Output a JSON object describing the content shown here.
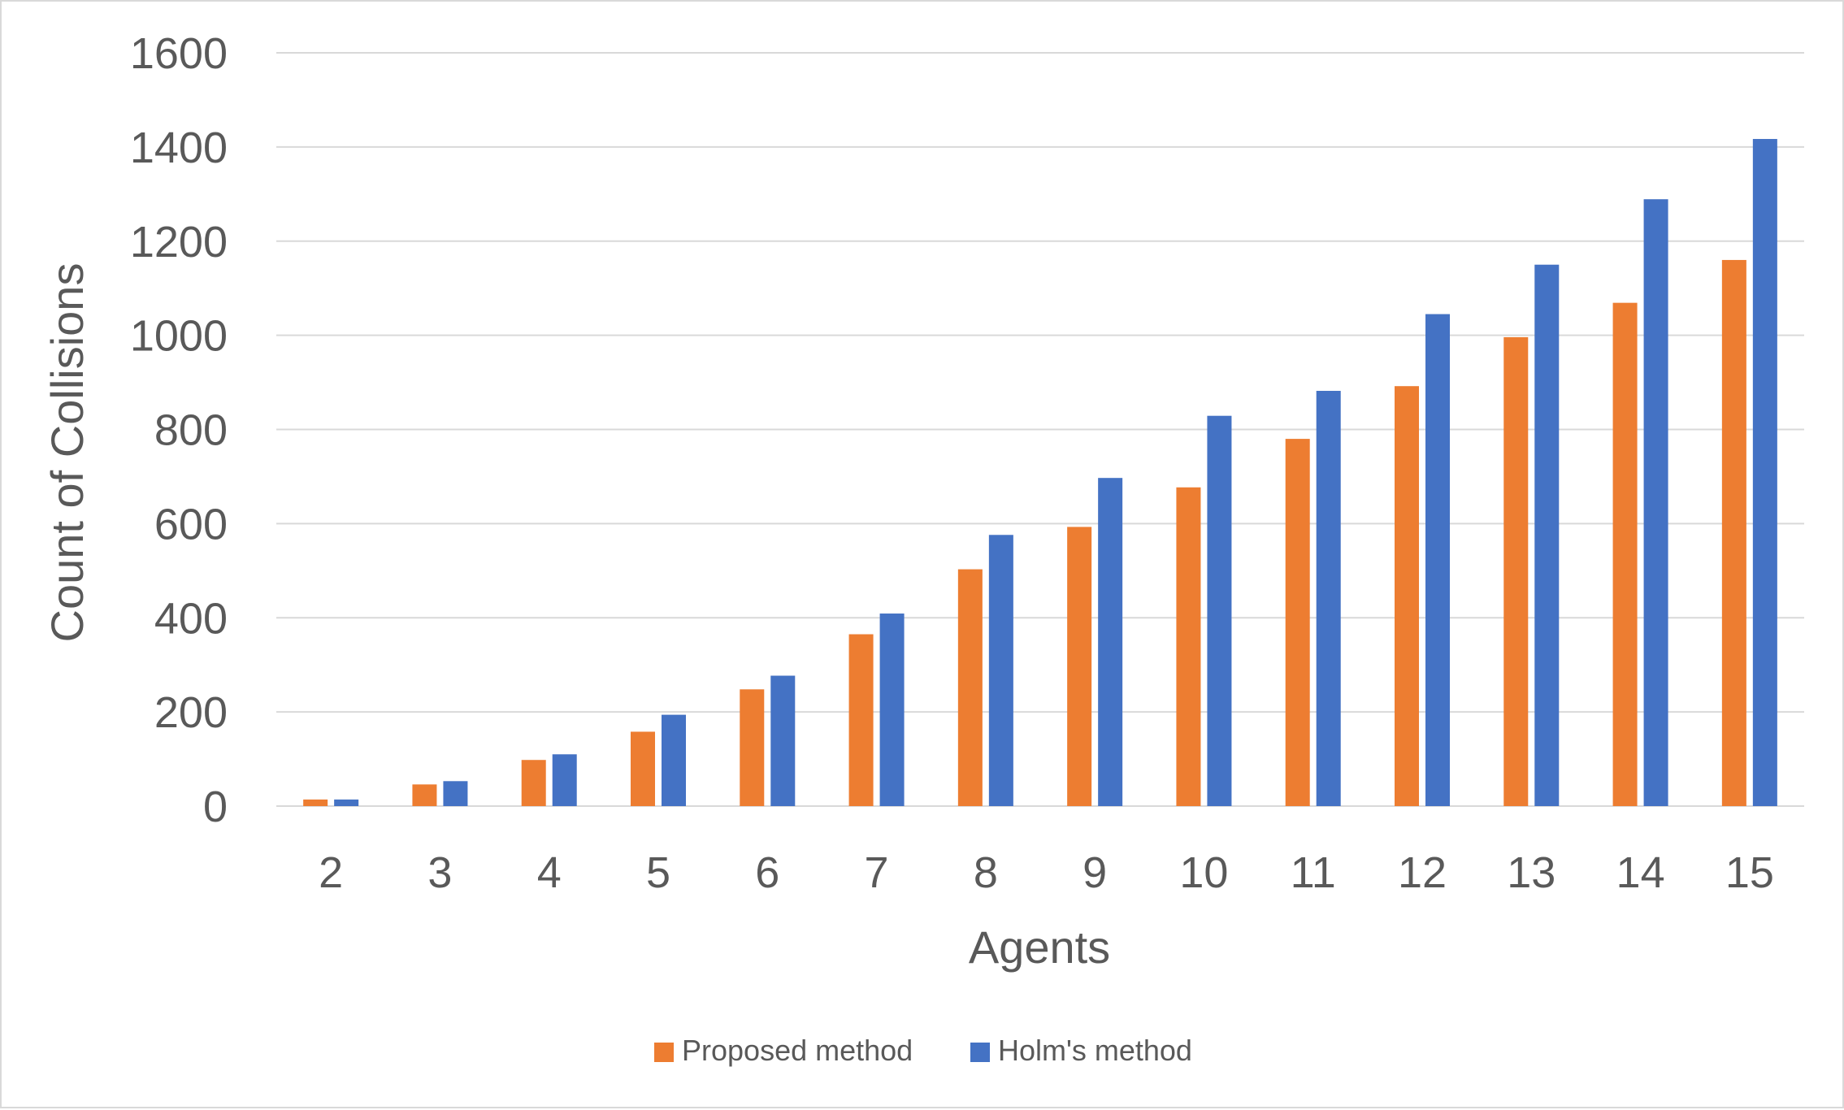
{
  "chart_data": {
    "type": "bar",
    "title": "",
    "xlabel": "Agents",
    "ylabel": "Count of Collisions",
    "ylim": [
      0,
      1600
    ],
    "yticks": [
      0,
      200,
      400,
      600,
      800,
      1000,
      1200,
      1400,
      1600
    ],
    "grid": true,
    "legend_position": "bottom",
    "categories": [
      "2",
      "3",
      "4",
      "5",
      "6",
      "7",
      "8",
      "9",
      "10",
      "11",
      "12",
      "13",
      "14",
      "15"
    ],
    "series": [
      {
        "name": "Proposed method",
        "color": "#ed7d31",
        "values": [
          14,
          46,
          98,
          158,
          248,
          365,
          503,
          593,
          677,
          780,
          892,
          996,
          1069,
          1160
        ]
      },
      {
        "name": "Holm's method",
        "color": "#4472c4",
        "values": [
          14,
          53,
          110,
          194,
          277,
          409,
          576,
          697,
          829,
          882,
          1045,
          1150,
          1289,
          1417
        ]
      }
    ]
  }
}
